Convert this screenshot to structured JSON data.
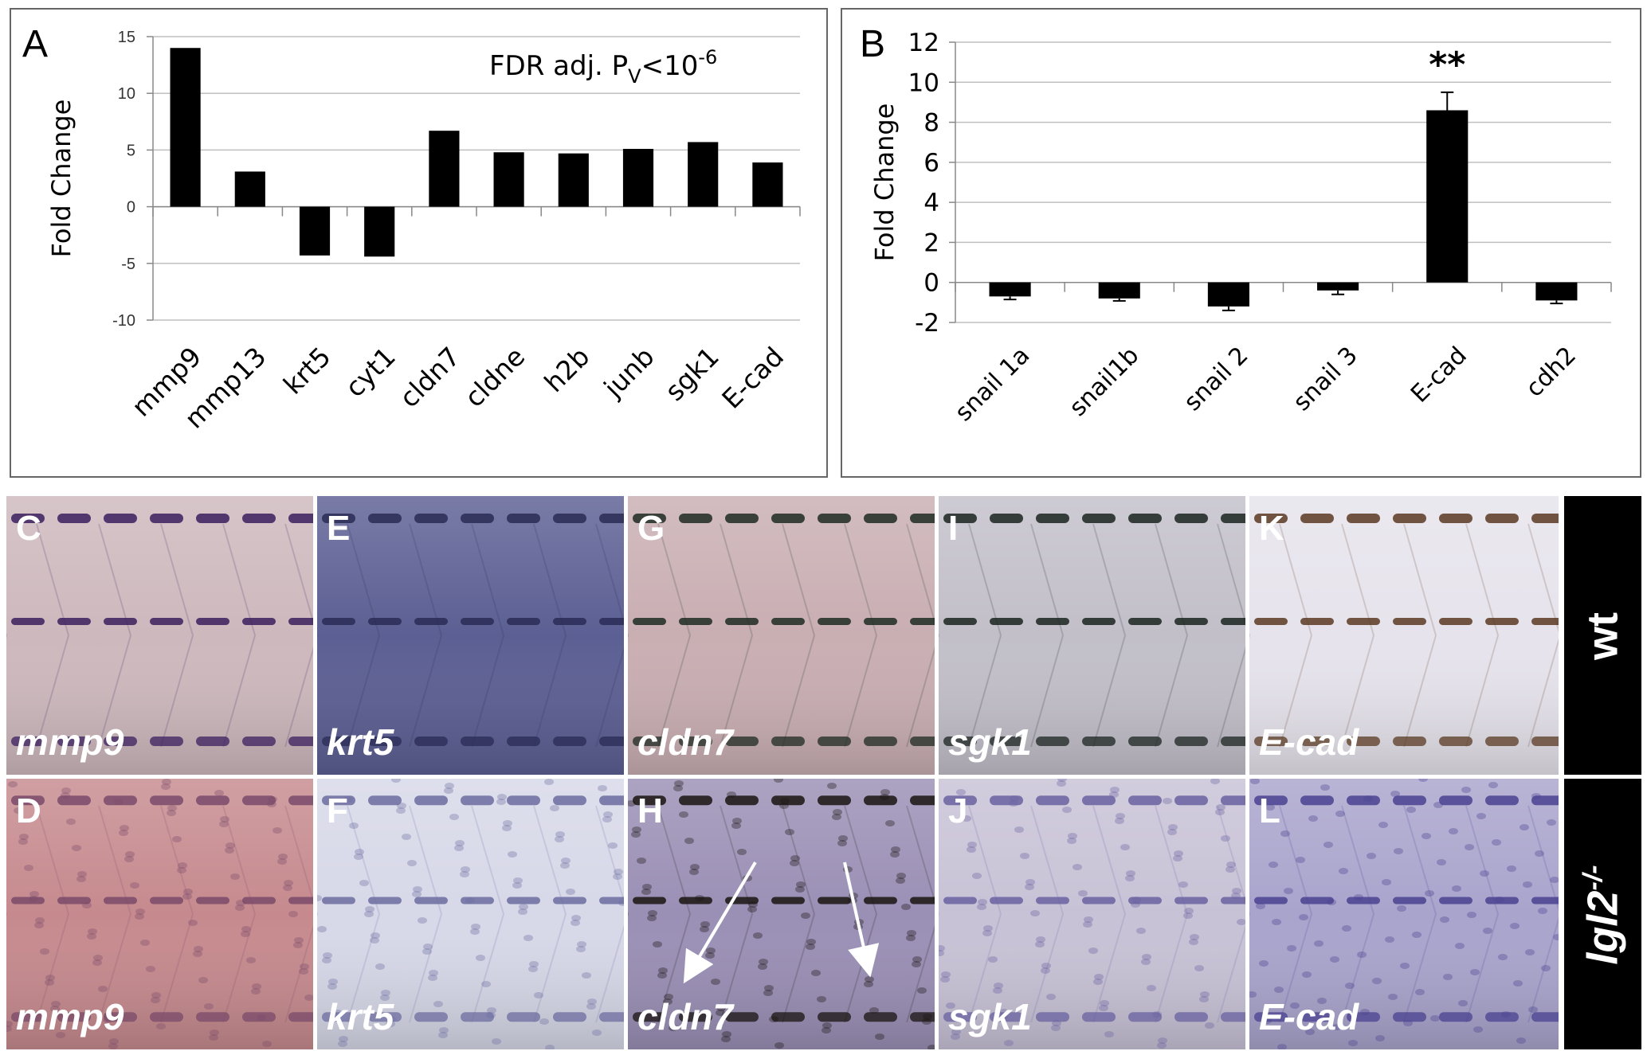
{
  "panels": {
    "a_letter": "A",
    "b_letter": "B"
  },
  "chart_data": [
    {
      "type": "bar",
      "panel": "A",
      "categories": [
        "mmp9",
        "mmp13",
        "krt5",
        "cyt1",
        "cldn7",
        "cldne",
        "h2b",
        "junb",
        "sgk1",
        "E-cad"
      ],
      "values": [
        14.0,
        3.1,
        -4.3,
        -4.4,
        6.7,
        4.8,
        4.7,
        5.1,
        5.7,
        3.9
      ],
      "ylabel": "Fold Change",
      "ylim": [
        -10,
        15
      ],
      "yticks": [
        "-10",
        "-5",
        "0",
        "5",
        "10",
        "15"
      ],
      "annotation_main": "FDR adj. P",
      "annotation_sub": "V",
      "annotation_rest": "<10",
      "annotation_sup": "-6",
      "grid": true,
      "bar_color": "#000000"
    },
    {
      "type": "bar",
      "panel": "B",
      "categories": [
        "snail 1a",
        "snail1b",
        "snail 2",
        "snail 3",
        "E-cad",
        "cdh2"
      ],
      "values": [
        -0.7,
        -0.8,
        -1.2,
        -0.4,
        8.6,
        -0.9
      ],
      "errors": [
        0.15,
        0.12,
        0.2,
        0.2,
        0.9,
        0.15
      ],
      "ylabel": "Fold Change",
      "ylim": [
        -2,
        12
      ],
      "yticks": [
        "-2",
        "0",
        "2",
        "4",
        "6",
        "8",
        "10",
        "12"
      ],
      "significance": "**",
      "significance_index": 4,
      "grid": true,
      "bar_color": "#000000"
    }
  ],
  "micrographs": [
    {
      "letter": "C",
      "gene": "mmp9",
      "row": "wt",
      "bg": "#cdb8bd",
      "stain": "#3b1f5e"
    },
    {
      "letter": "E",
      "gene": "krt5",
      "row": "wt",
      "bg": "#5c5f93",
      "stain": "#2a2b55"
    },
    {
      "letter": "G",
      "gene": "cldn7",
      "row": "wt",
      "bg": "#c9aeb2",
      "stain": "#1e2a22"
    },
    {
      "letter": "I",
      "gene": "sgk1",
      "row": "wt",
      "bg": "#c2bfc9",
      "stain": "#1b2420"
    },
    {
      "letter": "K",
      "gene": "E-cad",
      "row": "wt",
      "bg": "#e6e3ec",
      "stain": "#5a3a22"
    },
    {
      "letter": "D",
      "gene": "mmp9",
      "row": "lgl2",
      "bg": "#c68a8e",
      "stain": "#7a4a6a"
    },
    {
      "letter": "F",
      "gene": "krt5",
      "row": "lgl2",
      "bg": "#d7d8e8",
      "stain": "#6c6ca0"
    },
    {
      "letter": "H",
      "gene": "cldn7",
      "row": "lgl2",
      "bg": "#9a8fb5",
      "stain": "#1a1412"
    },
    {
      "letter": "J",
      "gene": "sgk1",
      "row": "lgl2",
      "bg": "#c8c2d6",
      "stain": "#6a62a0"
    },
    {
      "letter": "L",
      "gene": "E-cad",
      "row": "lgl2",
      "bg": "#a9a4cc",
      "stain": "#4a4290"
    }
  ],
  "row_labels": {
    "wt": "wt",
    "lgl2": "lgl2",
    "lgl2_sup": "-/-"
  }
}
